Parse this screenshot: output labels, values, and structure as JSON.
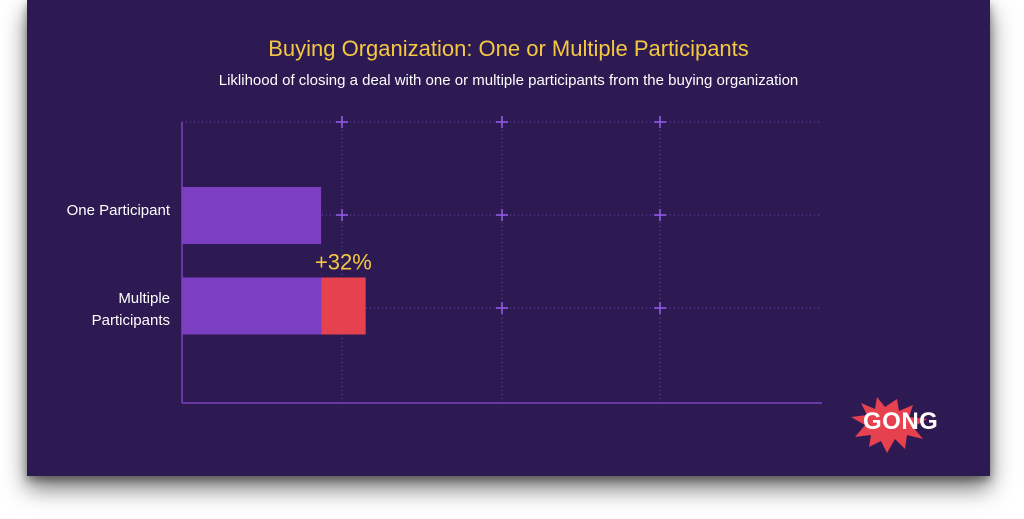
{
  "chart_data": {
    "type": "bar",
    "orientation": "horizontal",
    "stacked": true,
    "title": "Buying Organization: One or Multiple Participants",
    "subtitle": "Liklihood of closing a deal with one or multiple participants from the buying organization",
    "categories": [
      "One Participant",
      "Multiple Participants"
    ],
    "series": [
      {
        "values": [
          1.0,
          1.0
        ],
        "color": "#7d3fc2"
      },
      {
        "values": [
          0,
          0.32
        ],
        "color": "#e5414f"
      }
    ],
    "annotations": [
      {
        "category": "Multiple Participants",
        "text": "+32%",
        "color": "#f5c842"
      }
    ],
    "xlim": [
      0,
      4.6
    ],
    "grid": true
  },
  "brand": {
    "logo_text": "GONG",
    "logo_color": "#e5414f"
  },
  "colors": {
    "background": "#2e1a52",
    "axis": "#7d3fc2",
    "title": "#f5c842"
  }
}
